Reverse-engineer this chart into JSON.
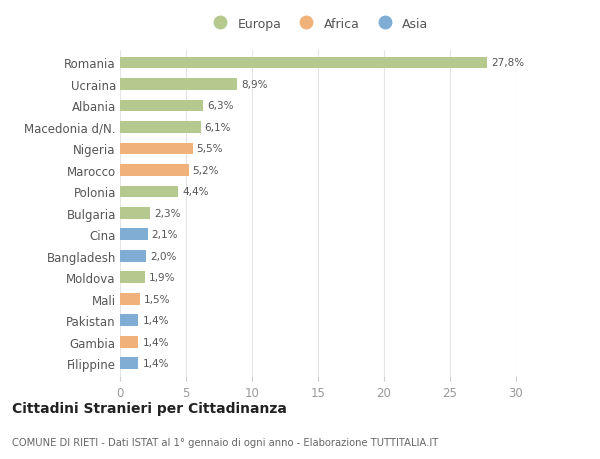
{
  "countries": [
    "Romania",
    "Ucraina",
    "Albania",
    "Macedonia d/N.",
    "Nigeria",
    "Marocco",
    "Polonia",
    "Bulgaria",
    "Cina",
    "Bangladesh",
    "Moldova",
    "Mali",
    "Pakistan",
    "Gambia",
    "Filippine"
  ],
  "values": [
    27.8,
    8.9,
    6.3,
    6.1,
    5.5,
    5.2,
    4.4,
    2.3,
    2.1,
    2.0,
    1.9,
    1.5,
    1.4,
    1.4,
    1.4
  ],
  "labels": [
    "27,8%",
    "8,9%",
    "6,3%",
    "6,1%",
    "5,5%",
    "5,2%",
    "4,4%",
    "2,3%",
    "2,1%",
    "2,0%",
    "1,9%",
    "1,5%",
    "1,4%",
    "1,4%",
    "1,4%"
  ],
  "categories": [
    "Europa",
    "Africa",
    "Asia"
  ],
  "bar_colors": [
    "#b5c98e",
    "#b5c98e",
    "#b5c98e",
    "#b5c98e",
    "#f0b27a",
    "#f0b27a",
    "#b5c98e",
    "#b5c98e",
    "#7fadd4",
    "#7fadd4",
    "#b5c98e",
    "#f0b27a",
    "#7fadd4",
    "#f0b27a",
    "#7fadd4"
  ],
  "legend_colors": [
    "#b5c98e",
    "#f0b27a",
    "#7fadd4"
  ],
  "title": "Cittadini Stranieri per Cittadinanza",
  "subtitle": "COMUNE DI RIETI - Dati ISTAT al 1° gennaio di ogni anno - Elaborazione TUTTITALIA.IT",
  "xlim": [
    0,
    30
  ],
  "xticks": [
    0,
    5,
    10,
    15,
    20,
    25,
    30
  ],
  "background_color": "#ffffff",
  "grid_color": "#e5e5e5"
}
